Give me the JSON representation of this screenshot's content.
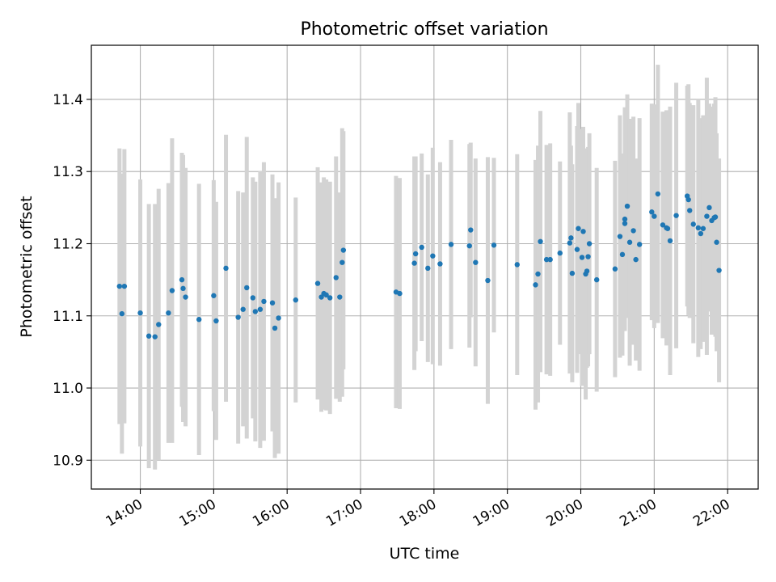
{
  "chart_data": {
    "type": "scatter",
    "title": "Photometric offset variation",
    "xlabel": "UTC time",
    "ylabel": "Photometric offset",
    "x_format": "HH:MM",
    "x_ticks": [
      "14:00",
      "15:00",
      "16:00",
      "17:00",
      "18:00",
      "19:00",
      "20:00",
      "21:00",
      "22:00"
    ],
    "y_ticks": [
      10.9,
      11.0,
      11.1,
      11.2,
      11.3,
      11.4
    ],
    "xlim": [
      "13:20",
      "22:25"
    ],
    "ylim": [
      10.86,
      11.475
    ],
    "grid": true,
    "colors": {
      "points": "#1f77b4",
      "error_bars": "#d3d3d3",
      "grid": "#b0b0b0"
    },
    "series": [
      {
        "x": [
          "13:43",
          "13:45",
          "13:47",
          "14:00",
          "14:07",
          "14:12",
          "14:15",
          "14:23",
          "14:26",
          "14:34",
          "14:35",
          "14:37",
          "14:48",
          "15:00",
          "15:02",
          "15:10",
          "15:20",
          "15:24",
          "15:27",
          "15:32",
          "15:34",
          "15:38",
          "15:41",
          "15:48",
          "15:50",
          "15:53",
          "16:07",
          "16:25",
          "16:28",
          "16:30",
          "16:32",
          "16:35",
          "16:40",
          "16:43",
          "16:45",
          "16:46",
          "17:29",
          "17:32",
          "17:44",
          "17:45",
          "17:50",
          "17:55",
          "17:59",
          "18:05",
          "18:14",
          "18:29",
          "18:30",
          "18:34",
          "18:44",
          "18:49",
          "19:08",
          "19:23",
          "19:25",
          "19:27",
          "19:32",
          "19:35",
          "19:43",
          "19:51",
          "19:52",
          "19:53",
          "19:57",
          "19:58",
          "20:01",
          "20:02",
          "20:04",
          "20:05",
          "20:06",
          "20:07",
          "20:13",
          "20:28",
          "20:32",
          "20:34",
          "20:36",
          "20:36",
          "20:38",
          "20:40",
          "20:43",
          "20:45",
          "20:48",
          "20:58",
          "21:00",
          "21:03",
          "21:07",
          "21:10",
          "21:11",
          "21:13",
          "21:18",
          "21:27",
          "21:28",
          "21:29",
          "21:32",
          "21:36",
          "21:38",
          "21:40",
          "21:43",
          "21:45",
          "21:47",
          "21:49",
          "21:50",
          "21:51",
          "21:53"
        ],
        "y": [
          11.141,
          11.103,
          11.141,
          11.104,
          11.072,
          11.071,
          11.088,
          11.104,
          11.135,
          11.15,
          11.138,
          11.126,
          11.095,
          11.128,
          11.093,
          11.166,
          11.098,
          11.109,
          11.139,
          11.125,
          11.106,
          11.109,
          11.12,
          11.118,
          11.083,
          11.097,
          11.122,
          11.145,
          11.126,
          11.131,
          11.129,
          11.125,
          11.153,
          11.126,
          11.174,
          11.191,
          11.133,
          11.131,
          11.173,
          11.186,
          11.195,
          11.166,
          11.183,
          11.172,
          11.199,
          11.197,
          11.219,
          11.174,
          11.149,
          11.198,
          11.171,
          11.143,
          11.158,
          11.203,
          11.178,
          11.178,
          11.187,
          11.201,
          11.208,
          11.159,
          11.192,
          11.221,
          11.181,
          11.217,
          11.158,
          11.162,
          11.182,
          11.2,
          11.15,
          11.165,
          11.21,
          11.185,
          11.234,
          11.228,
          11.252,
          11.202,
          11.218,
          11.178,
          11.199,
          11.244,
          11.238,
          11.269,
          11.226,
          11.222,
          11.221,
          11.204,
          11.239,
          11.266,
          11.261,
          11.246,
          11.227,
          11.222,
          11.214,
          11.221,
          11.238,
          11.25,
          11.232,
          11.236,
          11.237,
          11.202,
          11.163
        ],
        "err": [
          0.191,
          0.194,
          0.19,
          0.185,
          0.183,
          0.184,
          0.188,
          0.18,
          0.211,
          0.176,
          0.185,
          0.179,
          0.188,
          0.16,
          0.165,
          0.185,
          0.175,
          0.162,
          0.209,
          0.167,
          0.18,
          0.192,
          0.193,
          0.178,
          0.18,
          0.188,
          0.142,
          0.161,
          0.159,
          0.161,
          0.16,
          0.161,
          0.168,
          0.145,
          0.186,
          0.165,
          0.161,
          0.16,
          0.148,
          0.135,
          0.13,
          0.13,
          0.15,
          0.141,
          0.145,
          0.141,
          0.121,
          0.144,
          0.171,
          0.121,
          0.153,
          0.173,
          0.178,
          0.181,
          0.159,
          0.161,
          0.127,
          0.181,
          0.128,
          0.151,
          0.171,
          0.174,
          0.178,
          0.145,
          0.174,
          0.134,
          0.152,
          0.153,
          0.155,
          0.15,
          0.168,
          0.14,
          0.155,
          0.115,
          0.155,
          0.171,
          0.158,
          0.14,
          0.175,
          0.15,
          0.155,
          0.179,
          0.157,
          0.163,
          0.151,
          0.186,
          0.184,
          0.153,
          0.16,
          0.149,
          0.165,
          0.179,
          0.16,
          0.157,
          0.192,
          0.144,
          0.158,
          0.158,
          0.166,
          0.151,
          0.155
        ]
      }
    ]
  }
}
